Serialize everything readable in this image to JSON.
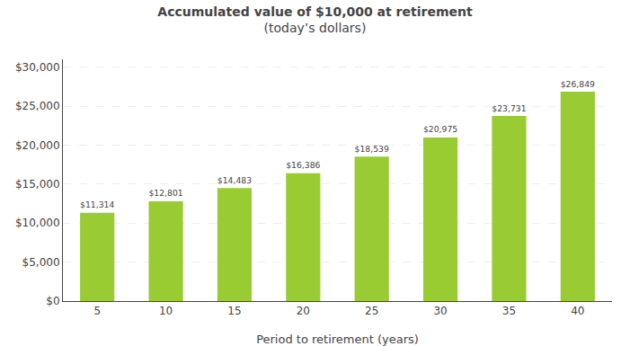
{
  "chart_data": {
    "type": "bar",
    "title": "Accumulated value of $10,000 at retirement",
    "subtitle": "(today’s dollars)",
    "x_label": "Period to retirement (years)",
    "categories": [
      "5",
      "10",
      "15",
      "20",
      "25",
      "30",
      "35",
      "40"
    ],
    "values": [
      11314,
      12801,
      14483,
      16386,
      18539,
      20975,
      23731,
      26849
    ],
    "value_labels": [
      "$11,314",
      "$12,801",
      "$14,483",
      "$16,386",
      "$18,539",
      "$20,975",
      "$23,731",
      "$26,849"
    ],
    "data_labels": true,
    "color": "#99cc33",
    "ylim": [
      0,
      31000
    ],
    "yticks": [
      {
        "value": 0,
        "label": "$0"
      },
      {
        "value": 5000,
        "label": "$5,000"
      },
      {
        "value": 10000,
        "label": "$10,000"
      },
      {
        "value": 15000,
        "label": "$15,000"
      },
      {
        "value": 20000,
        "label": "$20,000"
      },
      {
        "value": 25000,
        "label": "$25,000"
      },
      {
        "value": 30000,
        "label": "$30,000"
      }
    ],
    "grid": true
  }
}
